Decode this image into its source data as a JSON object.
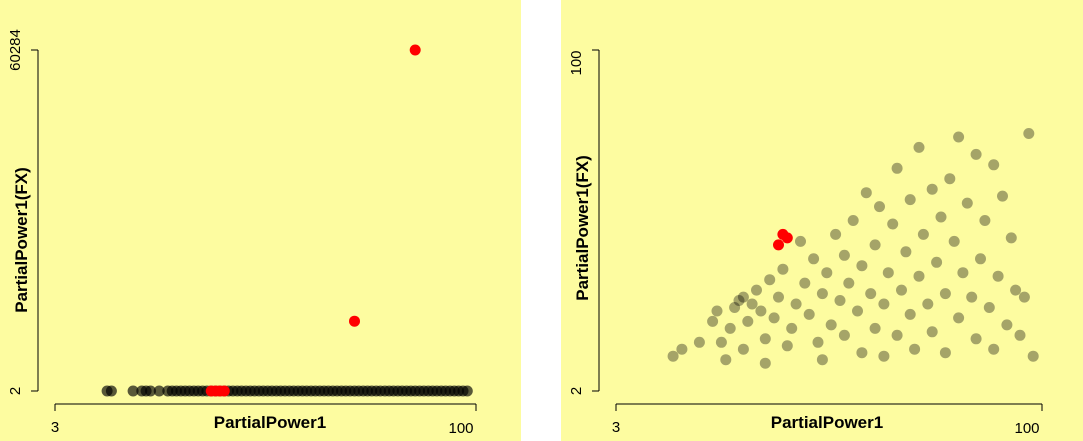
{
  "background": "#fdfca0",
  "marker_colors": {
    "normal": "#000000",
    "highlight": "#ff0000"
  },
  "chart_data": [
    {
      "type": "scatter",
      "xlabel": "PartialPower1",
      "ylabel": "PartialPower1(FX)",
      "x_ticks": [
        "3",
        "100"
      ],
      "y_ticks": [
        "2",
        "60284"
      ],
      "xlim": [
        3,
        100
      ],
      "ylim": [
        2,
        60284
      ],
      "series": [
        {
          "role": "normal",
          "points": [
            [
              15,
              2
            ],
            [
              16,
              2
            ],
            [
              21,
              2
            ],
            [
              23,
              2
            ],
            [
              24,
              2
            ],
            [
              25,
              2
            ],
            [
              27,
              2
            ],
            [
              29,
              2
            ],
            [
              30,
              2
            ],
            [
              31,
              2
            ],
            [
              32,
              2
            ],
            [
              33,
              2
            ],
            [
              34,
              2
            ],
            [
              35,
              2
            ],
            [
              36,
              2
            ],
            [
              37,
              2
            ],
            [
              38,
              2
            ],
            [
              39,
              2
            ],
            [
              40,
              2
            ],
            [
              41,
              2
            ],
            [
              42,
              2
            ],
            [
              43,
              2
            ],
            [
              44,
              2
            ],
            [
              45,
              2
            ],
            [
              46,
              2
            ],
            [
              47,
              2
            ],
            [
              48,
              2
            ],
            [
              49,
              2
            ],
            [
              50,
              2
            ],
            [
              51,
              2
            ],
            [
              52,
              2
            ],
            [
              53,
              2
            ],
            [
              54,
              2
            ],
            [
              55,
              2
            ],
            [
              56,
              2
            ],
            [
              57,
              2
            ],
            [
              58,
              2
            ],
            [
              59,
              2
            ],
            [
              60,
              2
            ],
            [
              61,
              2
            ],
            [
              62,
              2
            ],
            [
              63,
              2
            ],
            [
              64,
              2
            ],
            [
              65,
              2
            ],
            [
              66,
              2
            ],
            [
              67,
              2
            ],
            [
              68,
              2
            ],
            [
              69,
              2
            ],
            [
              70,
              2
            ],
            [
              71,
              2
            ],
            [
              72,
              2
            ],
            [
              73,
              2
            ],
            [
              74,
              2
            ],
            [
              75,
              2
            ],
            [
              76,
              2
            ],
            [
              77,
              2
            ],
            [
              78,
              2
            ],
            [
              79,
              2
            ],
            [
              80,
              2
            ],
            [
              81,
              2
            ],
            [
              82,
              2
            ],
            [
              83,
              2
            ],
            [
              84,
              2
            ],
            [
              85,
              2
            ],
            [
              86,
              2
            ],
            [
              87,
              2
            ],
            [
              88,
              2
            ],
            [
              89,
              2
            ],
            [
              90,
              2
            ],
            [
              91,
              2
            ],
            [
              92,
              2
            ],
            [
              93,
              2
            ],
            [
              94,
              2
            ],
            [
              95,
              2
            ],
            [
              96,
              2
            ],
            [
              97,
              2
            ],
            [
              98,
              2
            ]
          ]
        },
        {
          "role": "highlight",
          "points": [
            [
              39,
              2
            ],
            [
              40,
              2
            ],
            [
              41,
              2
            ],
            [
              42,
              2
            ],
            [
              72,
              12350
            ],
            [
              86,
              60284
            ]
          ]
        }
      ]
    },
    {
      "type": "scatter",
      "xlabel": "PartialPower1",
      "ylabel": "PartialPower1(FX)",
      "x_ticks": [
        "3",
        "100"
      ],
      "y_ticks": [
        "2",
        "100"
      ],
      "xlim": [
        3,
        100
      ],
      "ylim": [
        2,
        100
      ],
      "series": [
        {
          "role": "normal",
          "points": [
            [
              16,
              12
            ],
            [
              18,
              14
            ],
            [
              22,
              16
            ],
            [
              25,
              22
            ],
            [
              26,
              25
            ],
            [
              27,
              16
            ],
            [
              28,
              11
            ],
            [
              29,
              20
            ],
            [
              30,
              26
            ],
            [
              31,
              28
            ],
            [
              32,
              29
            ],
            [
              32,
              14
            ],
            [
              33,
              22
            ],
            [
              34,
              27
            ],
            [
              35,
              31
            ],
            [
              36,
              25
            ],
            [
              37,
              17
            ],
            [
              37,
              10
            ],
            [
              38,
              34
            ],
            [
              39,
              23
            ],
            [
              40,
              29
            ],
            [
              41,
              37
            ],
            [
              42,
              15
            ],
            [
              43,
              20
            ],
            [
              44,
              27
            ],
            [
              45,
              45
            ],
            [
              46,
              33
            ],
            [
              47,
              24
            ],
            [
              48,
              40
            ],
            [
              49,
              16
            ],
            [
              50,
              30
            ],
            [
              50,
              11
            ],
            [
              51,
              36
            ],
            [
              52,
              21
            ],
            [
              53,
              47
            ],
            [
              54,
              28
            ],
            [
              55,
              18
            ],
            [
              55,
              41
            ],
            [
              56,
              33
            ],
            [
              57,
              51
            ],
            [
              58,
              25
            ],
            [
              59,
              13
            ],
            [
              59,
              38
            ],
            [
              60,
              59
            ],
            [
              61,
              30
            ],
            [
              62,
              20
            ],
            [
              62,
              44
            ],
            [
              63,
              55
            ],
            [
              64,
              27
            ],
            [
              64,
              12
            ],
            [
              65,
              36
            ],
            [
              66,
              50
            ],
            [
              67,
              18
            ],
            [
              67,
              66
            ],
            [
              68,
              31
            ],
            [
              69,
              42
            ],
            [
              70,
              24
            ],
            [
              70,
              57
            ],
            [
              71,
              14
            ],
            [
              72,
              35
            ],
            [
              72,
              72
            ],
            [
              73,
              47
            ],
            [
              74,
              27
            ],
            [
              75,
              60
            ],
            [
              75,
              19
            ],
            [
              76,
              39
            ],
            [
              77,
              52
            ],
            [
              78,
              30
            ],
            [
              78,
              13
            ],
            [
              79,
              63
            ],
            [
              80,
              45
            ],
            [
              81,
              23
            ],
            [
              81,
              75
            ],
            [
              82,
              36
            ],
            [
              83,
              56
            ],
            [
              84,
              29
            ],
            [
              85,
              17
            ],
            [
              85,
              70
            ],
            [
              86,
              40
            ],
            [
              87,
              51
            ],
            [
              88,
              26
            ],
            [
              89,
              67
            ],
            [
              89,
              14
            ],
            [
              90,
              35
            ],
            [
              91,
              58
            ],
            [
              92,
              21
            ],
            [
              93,
              46
            ],
            [
              94,
              31
            ],
            [
              95,
              18
            ],
            [
              96,
              29
            ],
            [
              97,
              76
            ],
            [
              98,
              12
            ]
          ]
        },
        {
          "role": "highlight",
          "points": [
            [
              40,
              44
            ],
            [
              41,
              47
            ],
            [
              42,
              46
            ]
          ]
        }
      ]
    }
  ]
}
